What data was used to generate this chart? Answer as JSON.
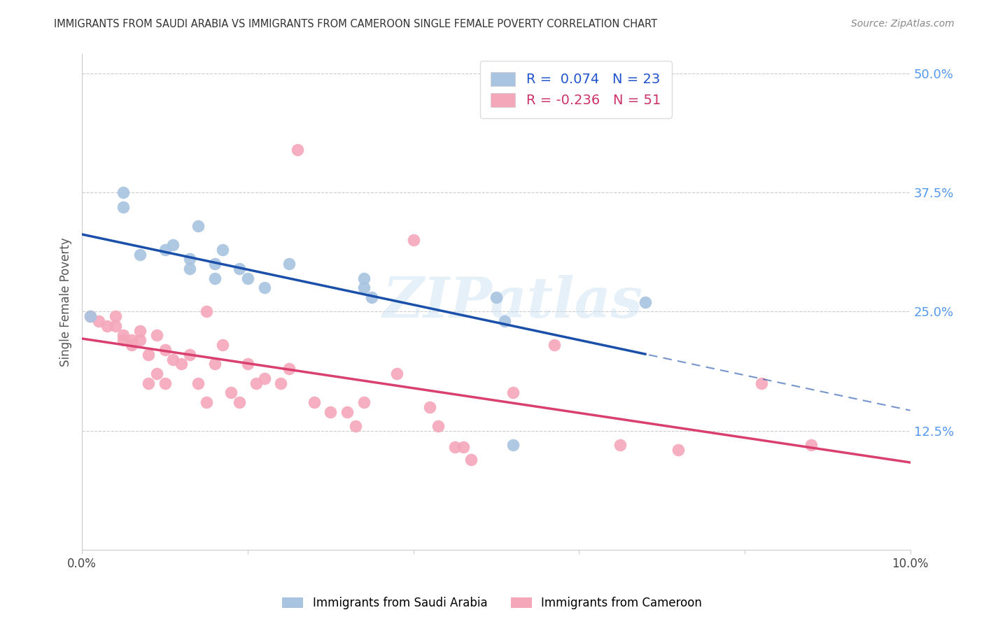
{
  "title": "IMMIGRANTS FROM SAUDI ARABIA VS IMMIGRANTS FROM CAMEROON SINGLE FEMALE POVERTY CORRELATION CHART",
  "source": "Source: ZipAtlas.com",
  "ylabel": "Single Female Poverty",
  "y_ticks": [
    0.0,
    0.125,
    0.25,
    0.375,
    0.5
  ],
  "y_tick_labels": [
    "",
    "12.5%",
    "25.0%",
    "37.5%",
    "50.0%"
  ],
  "x_range": [
    0.0,
    0.1
  ],
  "y_range": [
    0.0,
    0.52
  ],
  "saudi_color": "#a8c4e0",
  "cameroon_color": "#f4a7b9",
  "saudi_line_color": "#1a4faa",
  "cameroon_line_color": "#d94070",
  "saudi_R": 0.074,
  "saudi_N": 23,
  "cameroon_R": -0.236,
  "cameroon_N": 51,
  "saudi_x": [
    0.001,
    0.005,
    0.005,
    0.007,
    0.01,
    0.011,
    0.013,
    0.013,
    0.014,
    0.016,
    0.016,
    0.017,
    0.019,
    0.02,
    0.022,
    0.025,
    0.034,
    0.034,
    0.035,
    0.05,
    0.051,
    0.052,
    0.068
  ],
  "saudi_y": [
    0.245,
    0.375,
    0.36,
    0.31,
    0.315,
    0.32,
    0.305,
    0.295,
    0.34,
    0.3,
    0.285,
    0.315,
    0.295,
    0.285,
    0.275,
    0.3,
    0.285,
    0.275,
    0.265,
    0.265,
    0.24,
    0.11,
    0.26
  ],
  "cameroon_x": [
    0.001,
    0.002,
    0.003,
    0.004,
    0.004,
    0.005,
    0.005,
    0.006,
    0.006,
    0.007,
    0.007,
    0.008,
    0.008,
    0.009,
    0.009,
    0.01,
    0.01,
    0.011,
    0.012,
    0.013,
    0.014,
    0.015,
    0.015,
    0.016,
    0.017,
    0.018,
    0.019,
    0.02,
    0.021,
    0.022,
    0.024,
    0.025,
    0.026,
    0.028,
    0.03,
    0.032,
    0.033,
    0.034,
    0.038,
    0.04,
    0.042,
    0.043,
    0.045,
    0.046,
    0.047,
    0.052,
    0.057,
    0.065,
    0.072,
    0.082,
    0.088
  ],
  "cameroon_y": [
    0.245,
    0.24,
    0.235,
    0.235,
    0.245,
    0.225,
    0.22,
    0.215,
    0.22,
    0.22,
    0.23,
    0.205,
    0.175,
    0.185,
    0.225,
    0.21,
    0.175,
    0.2,
    0.195,
    0.205,
    0.175,
    0.25,
    0.155,
    0.195,
    0.215,
    0.165,
    0.155,
    0.195,
    0.175,
    0.18,
    0.175,
    0.19,
    0.42,
    0.155,
    0.145,
    0.145,
    0.13,
    0.155,
    0.185,
    0.325,
    0.15,
    0.13,
    0.108,
    0.108,
    0.095,
    0.165,
    0.215,
    0.11,
    0.105,
    0.175,
    0.11
  ],
  "watermark": "ZIPatlas",
  "background_color": "#ffffff",
  "grid_color": "#cccccc"
}
